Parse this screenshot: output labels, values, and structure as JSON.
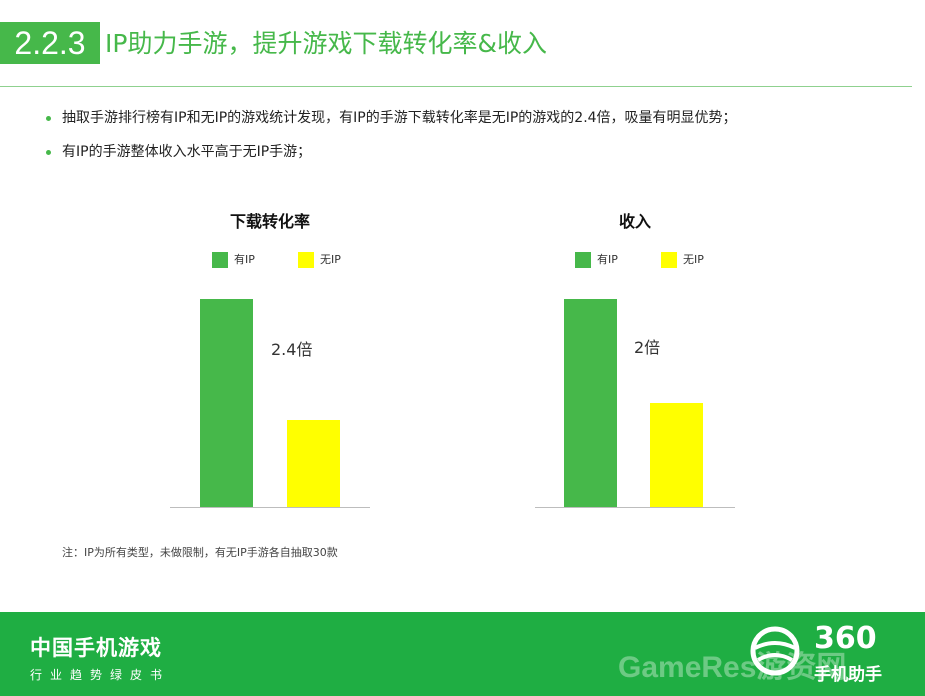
{
  "header": {
    "section_number": "2.2.3",
    "title": "IP助力手游，提升游戏下载转化率&收入"
  },
  "bullets": [
    "抽取手游排行榜有IP和无IP的游戏统计发现，有IP的手游下载转化率是无IP的游戏的2.4倍，吸量有明显优势；",
    "有IP的手游整体收入水平高于无IP手游；"
  ],
  "colors": {
    "accent": "#46b84a",
    "bar_ip": "#46b84a",
    "bar_noip": "#ffff00",
    "footer": "#1fae43"
  },
  "chart_data": [
    {
      "type": "bar",
      "title": "下载转化率",
      "categories": [
        "有IP",
        "无IP"
      ],
      "values": [
        2.4,
        1
      ],
      "annotation": "2.4倍",
      "ylim": [
        0,
        2.4
      ],
      "legend": [
        "有IP",
        "无IP"
      ],
      "legend_position": "top"
    },
    {
      "type": "bar",
      "title": "收入",
      "categories": [
        "有IP",
        "无IP"
      ],
      "values": [
        2,
        1
      ],
      "annotation": "2倍",
      "ylim": [
        0,
        2
      ],
      "legend": [
        "有IP",
        "无IP"
      ],
      "legend_position": "top"
    }
  ],
  "note": "注：IP为所有类型，未做限制，有无IP手游各自抽取30款",
  "footer": {
    "title": "中国手机游戏",
    "subtitle": "行业趋势绿皮书",
    "watermark": "GameRes游资网",
    "brand_number": "360",
    "brand_name": "手机助手"
  }
}
